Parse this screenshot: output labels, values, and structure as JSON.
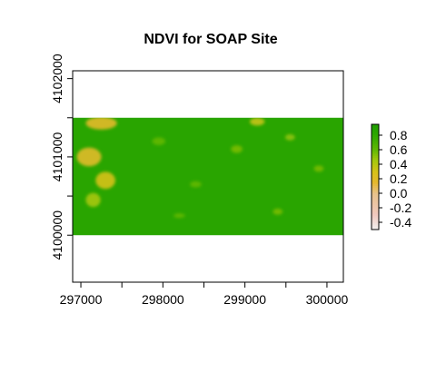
{
  "chart_data": {
    "type": "heatmap",
    "title": "NDVI for SOAP Site",
    "xlabel": "",
    "ylabel": "",
    "xlim": [
      296900,
      300200
    ],
    "ylim": [
      4099400,
      4102100
    ],
    "raster_extent": {
      "x": [
        296900,
        300200
      ],
      "y": [
        4100000,
        4101500
      ]
    },
    "x_ticks": [
      297000,
      297500,
      298000,
      298500,
      299000,
      299500,
      300000
    ],
    "x_tick_labels": [
      "297000",
      "298000",
      "299000",
      "300000"
    ],
    "y_ticks": [
      4100000,
      4100500,
      4101000,
      4101500,
      4102000
    ],
    "y_tick_labels": [
      "4100000",
      "4101000",
      "4102000"
    ],
    "value_range": [
      -0.5,
      0.95
    ],
    "legend": {
      "placement": "right",
      "values": [
        0.8,
        0.6,
        0.4,
        0.2,
        0.0,
        -0.2,
        -0.4
      ],
      "labels": [
        "0.8",
        "0.6",
        "0.4",
        "0.2",
        "0.0",
        "-0.2",
        "-0.4"
      ]
    },
    "palette": [
      {
        "value": -0.5,
        "color": "#F2F2F2"
      },
      {
        "value": -0.3,
        "color": "#F0C9C0"
      },
      {
        "value": 0.0,
        "color": "#E8C28A"
      },
      {
        "value": 0.15,
        "color": "#E6B82E"
      },
      {
        "value": 0.3,
        "color": "#D6C21A"
      },
      {
        "value": 0.45,
        "color": "#A6C80E"
      },
      {
        "value": 0.6,
        "color": "#62B804"
      },
      {
        "value": 0.8,
        "color": "#2EA800"
      },
      {
        "value": 0.95,
        "color": "#1F9E00"
      }
    ],
    "background_value": 0.85,
    "patches": [
      {
        "x": 297250,
        "y": 4101430,
        "rx": 190,
        "ry": 80,
        "value": 0.18
      },
      {
        "x": 297100,
        "y": 4101000,
        "rx": 150,
        "ry": 120,
        "value": 0.2
      },
      {
        "x": 297300,
        "y": 4100700,
        "rx": 120,
        "ry": 110,
        "value": 0.3
      },
      {
        "x": 297150,
        "y": 4100450,
        "rx": 90,
        "ry": 90,
        "value": 0.45
      },
      {
        "x": 299150,
        "y": 4101450,
        "rx": 90,
        "ry": 50,
        "value": 0.35
      },
      {
        "x": 298900,
        "y": 4101100,
        "rx": 70,
        "ry": 50,
        "value": 0.55
      },
      {
        "x": 299550,
        "y": 4101250,
        "rx": 60,
        "ry": 40,
        "value": 0.5
      },
      {
        "x": 299900,
        "y": 4100850,
        "rx": 60,
        "ry": 40,
        "value": 0.55
      },
      {
        "x": 297950,
        "y": 4101200,
        "rx": 80,
        "ry": 50,
        "value": 0.6
      },
      {
        "x": 298400,
        "y": 4100650,
        "rx": 70,
        "ry": 40,
        "value": 0.6
      },
      {
        "x": 299400,
        "y": 4100300,
        "rx": 60,
        "ry": 40,
        "value": 0.55
      },
      {
        "x": 298200,
        "y": 4100250,
        "rx": 70,
        "ry": 30,
        "value": 0.6
      }
    ]
  }
}
